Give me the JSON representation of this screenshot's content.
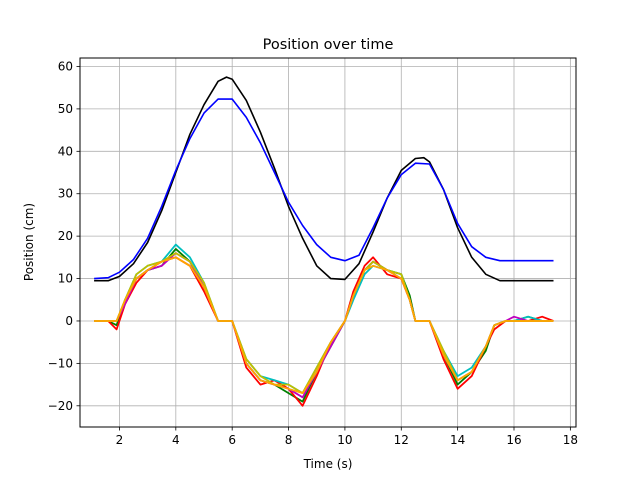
{
  "chart_data": {
    "type": "line",
    "title": "Position over time",
    "xlabel": "Time (s)",
    "ylabel": "Position (cm)",
    "xlim": [
      0.6,
      18.2
    ],
    "ylim": [
      -25,
      62
    ],
    "xticks": [
      2,
      4,
      6,
      8,
      10,
      12,
      14,
      16,
      18
    ],
    "yticks": [
      -20,
      -10,
      0,
      10,
      20,
      30,
      40,
      50,
      60
    ],
    "xtick_labels": [
      "2",
      "4",
      "6",
      "8",
      "10",
      "12",
      "14",
      "16",
      "18"
    ],
    "ytick_labels": [
      "−20",
      "−10",
      "0",
      "10",
      "20",
      "30",
      "40",
      "50",
      "60"
    ],
    "grid": true,
    "legend": false,
    "series": [
      {
        "color": "#000000",
        "x": [
          1.1,
          1.6,
          2.0,
          2.5,
          3.0,
          3.5,
          4.0,
          4.5,
          5.0,
          5.5,
          5.8,
          6.0,
          6.5,
          7.0,
          7.5,
          8.0,
          8.5,
          9.0,
          9.5,
          10.0,
          10.5,
          11.0,
          11.5,
          12.0,
          12.5,
          12.8,
          13.0,
          13.5,
          14.0,
          14.5,
          15.0,
          15.5,
          16.0,
          16.5,
          17.0,
          17.4
        ],
        "y": [
          9.5,
          9.5,
          10.5,
          13.5,
          18.5,
          26,
          35,
          44,
          51,
          56.5,
          57.5,
          57,
          52,
          44.5,
          36,
          27,
          19.5,
          13,
          10,
          9.8,
          13.5,
          21,
          29,
          35.5,
          38.3,
          38.5,
          37.5,
          31,
          22,
          15,
          11,
          9.5,
          9.5,
          9.5,
          9.5,
          9.5
        ]
      },
      {
        "color": "#0000ff",
        "x": [
          1.1,
          1.6,
          2.0,
          2.5,
          3.0,
          3.5,
          4.0,
          4.5,
          5.0,
          5.5,
          6.0,
          6.5,
          7.0,
          7.5,
          8.0,
          8.5,
          9.0,
          9.5,
          10.0,
          10.5,
          11.0,
          11.5,
          12.0,
          12.5,
          13.0,
          13.5,
          14.0,
          14.5,
          15.0,
          15.5,
          16.0,
          16.5,
          17.0,
          17.4
        ],
        "y": [
          10,
          10.2,
          11.5,
          14.5,
          19.5,
          27,
          35.5,
          43,
          49,
          52.3,
          52.3,
          48,
          42,
          35,
          28,
          22.5,
          18,
          15,
          14.2,
          15.5,
          22,
          29,
          34.5,
          37.2,
          37,
          31,
          23,
          17.5,
          15,
          14.2,
          14.2,
          14.2,
          14.2,
          14.2
        ]
      },
      {
        "color": "#008000",
        "x": [
          1.1,
          1.6,
          1.9,
          2.2,
          2.6,
          3.0,
          3.5,
          4.0,
          4.5,
          5.0,
          5.5,
          6.0,
          6.5,
          7.0,
          7.5,
          8.0,
          8.5,
          9.0,
          9.5,
          10.0,
          10.3,
          10.7,
          11.0,
          11.5,
          12.0,
          12.3,
          12.5,
          13.0,
          13.5,
          14.0,
          14.5,
          15.0,
          15.3,
          15.7,
          16.0,
          16.5,
          17.0,
          17.4
        ],
        "y": [
          0,
          0,
          -1,
          5,
          10,
          12,
          13,
          17,
          14,
          8,
          0,
          0,
          -10,
          -14,
          -15,
          -17,
          -19,
          -12,
          -6,
          0,
          6,
          12,
          14,
          12,
          11,
          6,
          0,
          0,
          -8,
          -15,
          -12,
          -7,
          -1,
          0,
          0,
          1,
          0,
          0
        ]
      },
      {
        "color": "#ff0000",
        "x": [
          1.1,
          1.6,
          1.9,
          2.2,
          2.6,
          3.0,
          3.5,
          4.0,
          4.5,
          5.0,
          5.5,
          6.0,
          6.5,
          7.0,
          7.5,
          8.0,
          8.5,
          9.0,
          9.5,
          10.0,
          10.3,
          10.7,
          11.0,
          11.5,
          12.0,
          12.3,
          12.5,
          13.0,
          13.5,
          14.0,
          14.5,
          15.0,
          15.3,
          15.7,
          16.0,
          16.5,
          17.0,
          17.4
        ],
        "y": [
          0,
          0,
          -2,
          4,
          9,
          12,
          14,
          15,
          13,
          7,
          0,
          0,
          -11,
          -15,
          -14,
          -16,
          -20,
          -13,
          -5,
          0,
          7,
          13,
          15,
          11,
          10,
          5,
          0,
          0,
          -9,
          -16,
          -13,
          -6,
          -2,
          0,
          0,
          0,
          1,
          0
        ]
      },
      {
        "color": "#00bfbf",
        "x": [
          1.1,
          1.6,
          1.9,
          2.2,
          2.6,
          3.0,
          3.5,
          4.0,
          4.5,
          5.0,
          5.5,
          6.0,
          6.5,
          7.0,
          7.5,
          8.0,
          8.5,
          9.0,
          9.5,
          10.0,
          10.3,
          10.7,
          11.0,
          11.5,
          12.0,
          12.3,
          12.5,
          13.0,
          13.5,
          14.0,
          14.5,
          15.0,
          15.3,
          15.7,
          16.0,
          16.5,
          17.0,
          17.4
        ],
        "y": [
          0,
          0,
          0,
          5,
          11,
          13,
          14,
          18,
          15,
          9,
          0,
          0,
          -9,
          -13,
          -14,
          -15,
          -17,
          -11,
          -5,
          0,
          5,
          11,
          13,
          12,
          11,
          5,
          0,
          0,
          -7,
          -13,
          -11,
          -6,
          -1,
          0,
          0,
          1,
          0,
          0
        ]
      },
      {
        "color": "#bf00bf",
        "x": [
          1.1,
          1.6,
          1.9,
          2.2,
          2.6,
          3.0,
          3.5,
          4.0,
          4.5,
          5.0,
          5.5,
          6.0,
          6.5,
          7.0,
          7.5,
          8.0,
          8.5,
          9.0,
          9.5,
          10.0,
          10.3,
          10.7,
          11.0,
          11.5,
          12.0,
          12.3,
          12.5,
          13.0,
          13.5,
          14.0,
          14.5,
          15.0,
          15.3,
          15.7,
          16.0,
          16.5,
          17.0,
          17.4
        ],
        "y": [
          0,
          0,
          0,
          4,
          10,
          12,
          13,
          16,
          14,
          8,
          0,
          0,
          -10,
          -14,
          -15,
          -16,
          -18,
          -12,
          -6,
          0,
          6,
          12,
          14,
          12,
          10,
          5,
          0,
          0,
          -8,
          -14,
          -12,
          -6,
          -1,
          0,
          1,
          0,
          0,
          0
        ]
      },
      {
        "color": "#bfbf00",
        "x": [
          1.1,
          1.6,
          1.9,
          2.2,
          2.6,
          3.0,
          3.5,
          4.0,
          4.5,
          5.0,
          5.5,
          6.0,
          6.5,
          7.0,
          7.5,
          8.0,
          8.5,
          9.0,
          9.5,
          10.0,
          10.3,
          10.7,
          11.0,
          11.5,
          12.0,
          12.3,
          12.5,
          13.0,
          13.5,
          14.0,
          14.5,
          15.0,
          15.3,
          15.7,
          16.0,
          16.5,
          17.0,
          17.4
        ],
        "y": [
          0,
          0,
          0,
          5,
          11,
          13,
          14,
          16,
          14,
          9,
          0,
          0,
          -9,
          -13,
          -15,
          -15,
          -17,
          -11,
          -5,
          0,
          6,
          12,
          14,
          12,
          11,
          5,
          0,
          0,
          -7,
          -14,
          -12,
          -6,
          -1,
          0,
          0,
          0,
          0,
          0
        ]
      },
      {
        "color": "#ffa500",
        "x": [
          1.1,
          1.6,
          1.9,
          2.2,
          2.6,
          3.0,
          3.5,
          4.0,
          4.5,
          5.0,
          5.5,
          6.0,
          6.5,
          7.0,
          7.5,
          8.0,
          8.5,
          9.0,
          9.5,
          10.0,
          10.3,
          10.7,
          11.0,
          11.5,
          12.0,
          12.3,
          12.5,
          13.0,
          13.5,
          14.0,
          14.5,
          15.0,
          15.3,
          15.7,
          16.0,
          16.5,
          17.0,
          17.4
        ],
        "y": [
          0,
          0,
          0,
          5,
          10,
          12,
          14,
          15,
          13,
          8,
          0,
          0,
          -10,
          -14,
          -15,
          -16,
          -17,
          -12,
          -5,
          0,
          6,
          12,
          13,
          12,
          10,
          5,
          0,
          0,
          -8,
          -14,
          -12,
          -6,
          -1,
          0,
          0,
          0,
          0,
          0
        ]
      }
    ]
  }
}
